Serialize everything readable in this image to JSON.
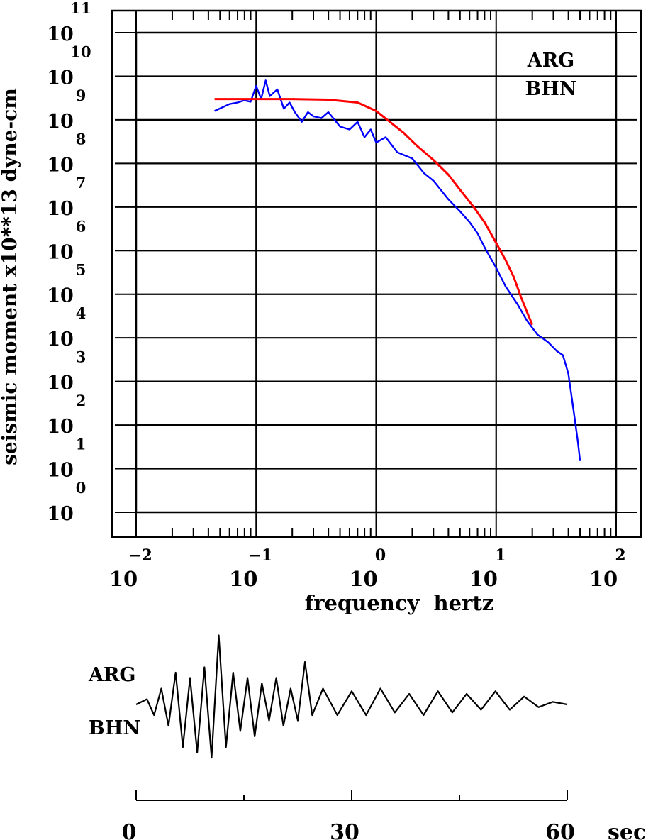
{
  "chart_data": [
    {
      "type": "line",
      "xlabel": "frequency  hertz",
      "ylabel": "seismic moment x10**13 dyne-cm",
      "xscale": "log",
      "yscale": "log",
      "xlim": [
        0.01,
        100
      ],
      "ylim": [
        1,
        100000000000
      ],
      "grid": true,
      "annotation": [
        "ARG",
        "BHN"
      ],
      "x_ticks": [
        {
          "base": "10",
          "exp": "−2",
          "value": 0.01
        },
        {
          "base": "10",
          "exp": "−1",
          "value": 0.1
        },
        {
          "base": "10",
          "exp": "0",
          "value": 1
        },
        {
          "base": "10",
          "exp": "1",
          "value": 10
        },
        {
          "base": "10",
          "exp": "2",
          "value": 100
        }
      ],
      "y_ticks": [
        {
          "base": "10",
          "exp": "0",
          "value": 1
        },
        {
          "base": "10",
          "exp": "1",
          "value": 10
        },
        {
          "base": "10",
          "exp": "2",
          "value": 100
        },
        {
          "base": "10",
          "exp": "3",
          "value": 1000
        },
        {
          "base": "10",
          "exp": "4",
          "value": 10000
        },
        {
          "base": "10",
          "exp": "5",
          "value": 100000
        },
        {
          "base": "10",
          "exp": "6",
          "value": 1000000
        },
        {
          "base": "10",
          "exp": "7",
          "value": 10000000
        },
        {
          "base": "10",
          "exp": "8",
          "value": 100000000
        },
        {
          "base": "10",
          "exp": "9",
          "value": 1000000000
        },
        {
          "base": "10",
          "exp": "10",
          "value": 10000000000
        },
        {
          "base": "10",
          "exp": "11",
          "value": 100000000000
        }
      ],
      "series": [
        {
          "color": "#0000ff",
          "style": "observed spectrum",
          "x": [
            0.045,
            0.06,
            0.07,
            0.08,
            0.09,
            0.1,
            0.11,
            0.12,
            0.13,
            0.15,
            0.17,
            0.19,
            0.21,
            0.24,
            0.27,
            0.3,
            0.35,
            0.4,
            0.45,
            0.5,
            0.6,
            0.7,
            0.8,
            0.9,
            1.0,
            1.2,
            1.5,
            2.0,
            2.5,
            3.0,
            4.0,
            5.0,
            6.0,
            7.0,
            8.0,
            10.0,
            12.0,
            15.0,
            18.0,
            22.0,
            27.0,
            32.0,
            36.0,
            40.0,
            45.0,
            48.0,
            50.0
          ],
          "y": [
            1600000000,
            2300000000,
            2500000000,
            2800000000,
            2600000000,
            6000000000,
            3000000000,
            8000000000,
            3500000000,
            5000000000,
            1800000000,
            2500000000,
            1500000000,
            900000000,
            1500000000,
            1200000000,
            1100000000,
            1500000000,
            1000000000,
            700000000,
            600000000,
            900000000,
            400000000,
            600000000,
            300000000,
            400000000,
            180000000,
            130000000,
            60000000,
            40000000,
            15000000,
            8000000,
            4500000,
            2500000,
            1200000,
            400000,
            150000,
            60000,
            25000,
            12000,
            8000,
            5000,
            4000,
            1500,
            150,
            40,
            15
          ]
        },
        {
          "color": "#ff0000",
          "style": "model fit",
          "x": [
            0.045,
            0.1,
            0.2,
            0.4,
            0.7,
            1.0,
            1.3,
            1.7,
            2.2,
            3.0,
            4.0,
            5.0,
            6.5,
            8.0,
            10.0,
            12.0,
            14.0,
            16.0,
            18.0,
            20.0
          ],
          "y": [
            3000000000,
            3000000000,
            3000000000,
            2900000000,
            2500000000,
            1600000000,
            900000000,
            500000000,
            250000000,
            120000000,
            55000000,
            25000000,
            10000000,
            4500000,
            1500000,
            600000,
            250000,
            90000,
            40000,
            20000
          ]
        }
      ]
    },
    {
      "type": "line",
      "xlabel": "",
      "ylabel": "",
      "annotation": [
        "ARG",
        "BHN"
      ],
      "x_unit": "sec",
      "xlim": [
        0,
        60
      ],
      "x_ticks": [
        {
          "label": "0",
          "value": 0
        },
        {
          "label": "30",
          "value": 30
        },
        {
          "label": "60",
          "value": 60
        }
      ],
      "minor_ticks": [
        15,
        45
      ],
      "series": [
        {
          "color": "#000000",
          "style": "seismogram trace",
          "x": [
            0,
            1.5,
            2.5,
            3.5,
            4.5,
            5.5,
            6.5,
            7.5,
            8.5,
            9.5,
            10.5,
            11.5,
            12.5,
            13.5,
            14.5,
            15.5,
            16.5,
            17.5,
            18.5,
            19.5,
            20.5,
            21.5,
            22.5,
            23.5,
            24.5,
            26,
            28,
            30,
            32,
            34,
            36,
            38,
            40,
            42,
            44,
            46,
            48,
            50,
            52,
            54,
            56,
            58,
            60
          ],
          "y": [
            0,
            0.1,
            -0.2,
            0.3,
            -0.4,
            0.6,
            -0.8,
            0.5,
            -0.9,
            0.7,
            -1.0,
            1.3,
            -0.8,
            0.6,
            -0.5,
            0.5,
            -0.6,
            0.4,
            -0.3,
            0.5,
            -0.4,
            0.3,
            -0.3,
            0.8,
            -0.2,
            0.3,
            -0.2,
            0.25,
            -0.2,
            0.3,
            -0.15,
            0.2,
            -0.2,
            0.25,
            -0.15,
            0.2,
            -0.1,
            0.25,
            -0.1,
            0.15,
            -0.05,
            0.05,
            0
          ]
        }
      ]
    }
  ]
}
